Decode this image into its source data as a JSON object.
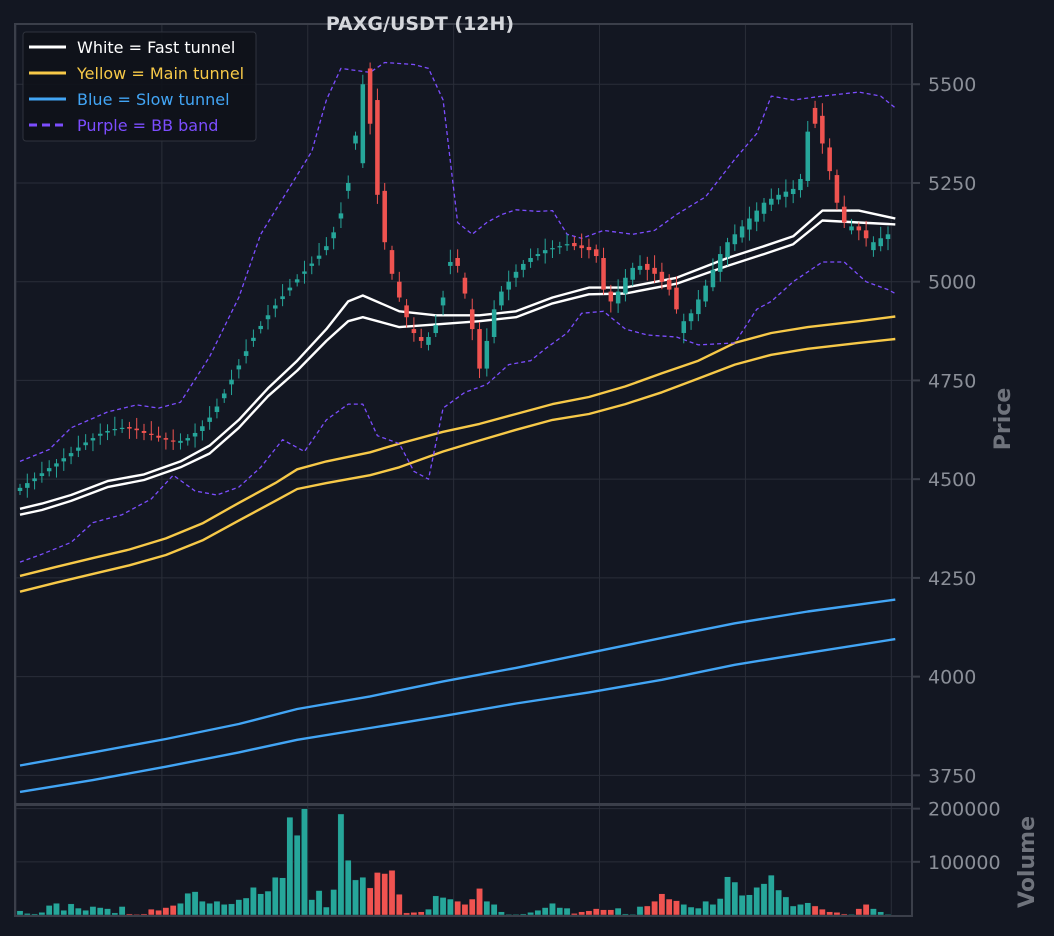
{
  "chart_data": {
    "type": "candlestick",
    "title": "PAXG/USDT (12H)",
    "price_axis": {
      "label": "Price",
      "ylim": [
        3680,
        5650
      ],
      "ticks": [
        3750,
        4000,
        4250,
        4500,
        4750,
        5000,
        5250,
        5500
      ],
      "tick_labels": [
        "3750",
        "4000",
        "4250",
        "4500",
        "4750",
        "5000",
        "5250",
        "5500"
      ]
    },
    "volume_axis": {
      "label": "Volume",
      "ylim": [
        0,
        205000
      ],
      "ticks": [
        100000,
        200000
      ],
      "tick_labels": [
        "100000",
        "200000"
      ]
    },
    "legend": {
      "placement": "top-left",
      "entries": [
        {
          "label": "White = Fast tunnel",
          "color": "#ffffff",
          "style": "solid"
        },
        {
          "label": "Yellow = Main tunnel",
          "color": "#f7c948",
          "style": "solid"
        },
        {
          "label": "Blue = Slow tunnel",
          "color": "#42a5f5",
          "style": "solid"
        },
        {
          "label": "Purple = BB band",
          "color": "#7c4dff",
          "style": "dashed"
        }
      ]
    },
    "colors": {
      "up": "#26a69a",
      "down": "#ef5350",
      "grid": "#2a2e39",
      "background": "#131722"
    },
    "candle_count": 120,
    "close": [
      4478,
      4490,
      4502,
      4515,
      4528,
      4540,
      4553,
      4566,
      4580,
      4593,
      4604,
      4615,
      4622,
      4627,
      4630,
      4628,
      4624,
      4617,
      4612,
      4605,
      4600,
      4595,
      4597,
      4604,
      4617,
      4634,
      4656,
      4684,
      4717,
      4752,
      4788,
      4824,
      4858,
      4888,
      4915,
      4940,
      4963,
      4985,
      5006,
      5026,
      5046,
      5066,
      5090,
      5125,
      5173,
      5250,
      5370,
      5500,
      5400,
      5220,
      5100,
      5020,
      4960,
      4910,
      4870,
      4850,
      4860,
      4890,
      4960,
      5050,
      5040,
      4970,
      4880,
      4780,
      4850,
      4930,
      4975,
      5000,
      5025,
      5045,
      5060,
      5070,
      5080,
      5085,
      5090,
      5095,
      5090,
      5085,
      5080,
      5065,
      4980,
      4950,
      4975,
      5010,
      5035,
      5040,
      5030,
      5020,
      5000,
      4980,
      4930,
      4900,
      4920,
      4955,
      4990,
      5030,
      5070,
      5100,
      5120,
      5140,
      5160,
      5180,
      5200,
      5210,
      5220,
      5228,
      5235,
      5260,
      5380,
      5400,
      5350,
      5280,
      5200,
      5150,
      5140,
      5130,
      5110,
      5100,
      5110,
      5120
    ],
    "open": [
      4470,
      4478,
      4495,
      4508,
      4520,
      4532,
      4545,
      4558,
      4572,
      4586,
      4598,
      4610,
      4618,
      4625,
      4628,
      4632,
      4628,
      4622,
      4615,
      4610,
      4604,
      4598,
      4592,
      4598,
      4608,
      4622,
      4645,
      4670,
      4705,
      4740,
      4778,
      4812,
      4850,
      4880,
      4905,
      4932,
      4956,
      4978,
      4998,
      5020,
      5040,
      5058,
      5080,
      5110,
      5160,
      5230,
      5350,
      5300,
      5540,
      5460,
      5230,
      5080,
      5000,
      4940,
      4880,
      4860,
      4840,
      4870,
      4940,
      5040,
      5060,
      5010,
      4930,
      4880,
      4780,
      4860,
      4940,
      4980,
      5010,
      5030,
      5050,
      5065,
      5072,
      5082,
      5088,
      5092,
      5098,
      5092,
      5088,
      5082,
      5060,
      4975,
      4945,
      4970,
      5005,
      5030,
      5045,
      5035,
      5025,
      5005,
      4985,
      4870,
      4900,
      4918,
      4950,
      4986,
      5025,
      5062,
      5095,
      5112,
      5132,
      5152,
      5172,
      5195,
      5208,
      5215,
      5222,
      5232,
      5255,
      5440,
      5420,
      5340,
      5270,
      5190,
      5130,
      5140,
      5130,
      5080,
      5090,
      5108
    ],
    "volume": [
      8000,
      3000,
      2000,
      5000,
      18000,
      22000,
      9000,
      21000,
      13000,
      9000,
      16000,
      14000,
      12000,
      4000,
      16000,
      2000,
      1000,
      2000,
      11000,
      9000,
      14000,
      18000,
      22000,
      41000,
      44000,
      26000,
      22000,
      26000,
      20000,
      21000,
      29000,
      32000,
      52000,
      40000,
      45000,
      71000,
      70000,
      184000,
      150000,
      200000,
      29000,
      46000,
      15000,
      48000,
      190000,
      103000,
      66000,
      71000,
      51000,
      80000,
      78000,
      84000,
      39000,
      4000,
      5000,
      6000,
      11000,
      36000,
      33000,
      30000,
      26000,
      20000,
      30000,
      50000,
      26000,
      20000,
      6000,
      1000,
      1000,
      2000,
      5000,
      9000,
      14000,
      22000,
      14000,
      13000,
      3000,
      6000,
      8000,
      12000,
      10000,
      10000,
      13000,
      2000,
      1000,
      16000,
      17000,
      26000,
      40000,
      30000,
      27000,
      20000,
      15000,
      13000,
      26000,
      20000,
      31000,
      72000,
      62000,
      37000,
      38000,
      52000,
      59000,
      75000,
      47000,
      34000,
      17000,
      20000,
      23000,
      17000,
      11000,
      6000,
      5000,
      2000,
      1000,
      12000,
      20000,
      12000,
      6000,
      1000
    ],
    "series": [
      {
        "name": "Fast tunnel upper",
        "color": "#ffffff",
        "points": [
          [
            0,
            4425
          ],
          [
            3,
            4438
          ],
          [
            7,
            4460
          ],
          [
            12,
            4495
          ],
          [
            17,
            4512
          ],
          [
            22,
            4545
          ],
          [
            26,
            4585
          ],
          [
            30,
            4650
          ],
          [
            34,
            4730
          ],
          [
            38,
            4800
          ],
          [
            42,
            4880
          ],
          [
            45,
            4950
          ],
          [
            47,
            4965
          ],
          [
            52,
            4925
          ],
          [
            57,
            4915
          ],
          [
            63,
            4915
          ],
          [
            68,
            4925
          ],
          [
            73,
            4960
          ],
          [
            78,
            4985
          ],
          [
            83,
            4985
          ],
          [
            90,
            5010
          ],
          [
            97,
            5060
          ],
          [
            102,
            5090
          ],
          [
            106,
            5115
          ],
          [
            110,
            5180
          ],
          [
            115,
            5180
          ],
          [
            120,
            5160
          ]
        ]
      },
      {
        "name": "Fast tunnel lower",
        "color": "#ffffff",
        "points": [
          [
            0,
            4410
          ],
          [
            3,
            4422
          ],
          [
            7,
            4445
          ],
          [
            12,
            4480
          ],
          [
            17,
            4498
          ],
          [
            22,
            4530
          ],
          [
            26,
            4565
          ],
          [
            30,
            4630
          ],
          [
            34,
            4710
          ],
          [
            38,
            4775
          ],
          [
            42,
            4850
          ],
          [
            45,
            4900
          ],
          [
            47,
            4910
          ],
          [
            52,
            4885
          ],
          [
            57,
            4892
          ],
          [
            63,
            4900
          ],
          [
            68,
            4910
          ],
          [
            73,
            4945
          ],
          [
            78,
            4968
          ],
          [
            83,
            4970
          ],
          [
            90,
            4995
          ],
          [
            97,
            5040
          ],
          [
            102,
            5070
          ],
          [
            106,
            5095
          ],
          [
            110,
            5155
          ],
          [
            115,
            5150
          ],
          [
            120,
            5145
          ]
        ]
      },
      {
        "name": "Main tunnel upper",
        "color": "#f7c948",
        "points": [
          [
            0,
            4255
          ],
          [
            5,
            4278
          ],
          [
            10,
            4300
          ],
          [
            15,
            4322
          ],
          [
            20,
            4350
          ],
          [
            25,
            4388
          ],
          [
            30,
            4440
          ],
          [
            35,
            4490
          ],
          [
            38,
            4525
          ],
          [
            42,
            4545
          ],
          [
            48,
            4568
          ],
          [
            52,
            4590
          ],
          [
            58,
            4620
          ],
          [
            63,
            4640
          ],
          [
            68,
            4665
          ],
          [
            73,
            4690
          ],
          [
            78,
            4708
          ],
          [
            83,
            4735
          ],
          [
            88,
            4768
          ],
          [
            93,
            4800
          ],
          [
            98,
            4845
          ],
          [
            103,
            4870
          ],
          [
            108,
            4885
          ],
          [
            115,
            4900
          ],
          [
            120,
            4912
          ]
        ]
      },
      {
        "name": "Main tunnel lower",
        "color": "#f7c948",
        "points": [
          [
            0,
            4215
          ],
          [
            5,
            4238
          ],
          [
            10,
            4260
          ],
          [
            15,
            4282
          ],
          [
            20,
            4308
          ],
          [
            25,
            4345
          ],
          [
            30,
            4395
          ],
          [
            35,
            4445
          ],
          [
            38,
            4475
          ],
          [
            42,
            4490
          ],
          [
            48,
            4510
          ],
          [
            52,
            4530
          ],
          [
            58,
            4570
          ],
          [
            63,
            4598
          ],
          [
            68,
            4625
          ],
          [
            73,
            4650
          ],
          [
            78,
            4665
          ],
          [
            83,
            4690
          ],
          [
            88,
            4720
          ],
          [
            93,
            4755
          ],
          [
            98,
            4790
          ],
          [
            103,
            4815
          ],
          [
            108,
            4830
          ],
          [
            115,
            4845
          ],
          [
            120,
            4855
          ]
        ]
      },
      {
        "name": "Slow tunnel upper",
        "color": "#42a5f5",
        "points": [
          [
            0,
            3775
          ],
          [
            10,
            3808
          ],
          [
            20,
            3842
          ],
          [
            30,
            3880
          ],
          [
            38,
            3918
          ],
          [
            48,
            3950
          ],
          [
            58,
            3988
          ],
          [
            68,
            4022
          ],
          [
            78,
            4060
          ],
          [
            88,
            4098
          ],
          [
            98,
            4135
          ],
          [
            108,
            4165
          ],
          [
            120,
            4195
          ]
        ]
      },
      {
        "name": "Slow tunnel lower",
        "color": "#42a5f5",
        "points": [
          [
            0,
            3708
          ],
          [
            10,
            3738
          ],
          [
            20,
            3772
          ],
          [
            30,
            3808
          ],
          [
            38,
            3840
          ],
          [
            48,
            3870
          ],
          [
            58,
            3900
          ],
          [
            68,
            3932
          ],
          [
            78,
            3960
          ],
          [
            88,
            3992
          ],
          [
            98,
            4030
          ],
          [
            108,
            4060
          ],
          [
            120,
            4095
          ]
        ]
      },
      {
        "name": "BB upper",
        "color": "#7c4dff",
        "dashed": true,
        "points": [
          [
            0,
            4545
          ],
          [
            4,
            4575
          ],
          [
            7,
            4630
          ],
          [
            12,
            4670
          ],
          [
            16,
            4688
          ],
          [
            19,
            4680
          ],
          [
            22,
            4695
          ],
          [
            26,
            4810
          ],
          [
            30,
            4960
          ],
          [
            33,
            5120
          ],
          [
            37,
            5240
          ],
          [
            40,
            5330
          ],
          [
            42,
            5460
          ],
          [
            44,
            5540
          ],
          [
            48,
            5530
          ],
          [
            50,
            5555
          ],
          [
            54,
            5550
          ],
          [
            56,
            5540
          ],
          [
            58,
            5460
          ],
          [
            60,
            5150
          ],
          [
            62,
            5120
          ],
          [
            64,
            5150
          ],
          [
            66,
            5170
          ],
          [
            68,
            5182
          ],
          [
            71,
            5178
          ],
          [
            73,
            5180
          ],
          [
            75,
            5120
          ],
          [
            77,
            5110
          ],
          [
            80,
            5130
          ],
          [
            84,
            5120
          ],
          [
            87,
            5130
          ],
          [
            90,
            5170
          ],
          [
            94,
            5215
          ],
          [
            98,
            5310
          ],
          [
            101,
            5375
          ],
          [
            103,
            5470
          ],
          [
            106,
            5460
          ],
          [
            110,
            5470
          ],
          [
            115,
            5480
          ],
          [
            118,
            5470
          ],
          [
            120,
            5440
          ]
        ]
      },
      {
        "name": "BB lower",
        "color": "#7c4dff",
        "dashed": true,
        "points": [
          [
            0,
            4290
          ],
          [
            3,
            4310
          ],
          [
            7,
            4340
          ],
          [
            10,
            4390
          ],
          [
            14,
            4410
          ],
          [
            18,
            4450
          ],
          [
            21,
            4510
          ],
          [
            24,
            4470
          ],
          [
            27,
            4460
          ],
          [
            30,
            4480
          ],
          [
            33,
            4530
          ],
          [
            36,
            4600
          ],
          [
            39,
            4570
          ],
          [
            42,
            4650
          ],
          [
            45,
            4690
          ],
          [
            47,
            4690
          ],
          [
            49,
            4610
          ],
          [
            52,
            4590
          ],
          [
            54,
            4520
          ],
          [
            56,
            4500
          ],
          [
            58,
            4680
          ],
          [
            61,
            4720
          ],
          [
            64,
            4740
          ],
          [
            67,
            4790
          ],
          [
            70,
            4800
          ],
          [
            72,
            4830
          ],
          [
            75,
            4870
          ],
          [
            77,
            4920
          ],
          [
            80,
            4925
          ],
          [
            83,
            4880
          ],
          [
            86,
            4865
          ],
          [
            90,
            4860
          ],
          [
            93,
            4840
          ],
          [
            98,
            4845
          ],
          [
            101,
            4930
          ],
          [
            103,
            4950
          ],
          [
            106,
            5000
          ],
          [
            110,
            5050
          ],
          [
            113,
            5050
          ],
          [
            116,
            5000
          ],
          [
            119,
            4980
          ],
          [
            120,
            4970
          ]
        ]
      }
    ]
  }
}
